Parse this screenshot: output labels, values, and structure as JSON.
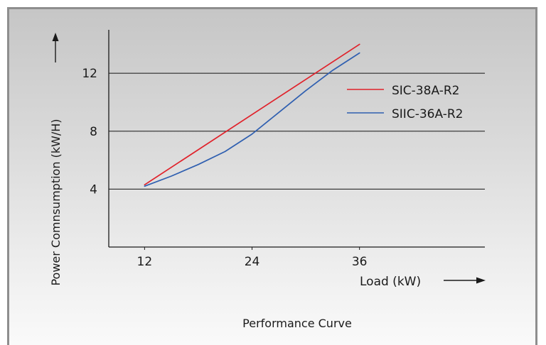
{
  "chart_data": {
    "type": "line",
    "title": "Performance Curve",
    "xlabel": "Load (kW)",
    "ylabel": "Power Comnsumption (kW/H)",
    "xlim": [
      8,
      50
    ],
    "ylim": [
      0,
      15
    ],
    "x_ticks": [
      12,
      24,
      36
    ],
    "y_ticks": [
      4,
      8,
      12
    ],
    "grid": "horizontal",
    "legend_position": "right",
    "series": [
      {
        "name": "SIC-38A-R2",
        "color": "#e0222b",
        "points": [
          [
            12,
            4.3
          ],
          [
            36,
            14.0
          ]
        ]
      },
      {
        "name": "SIIC-36A-R2",
        "color": "#2f5fb0",
        "points": [
          [
            12,
            4.2
          ],
          [
            15,
            4.9
          ],
          [
            18,
            5.7
          ],
          [
            21,
            6.6
          ],
          [
            24,
            7.8
          ],
          [
            27,
            9.3
          ],
          [
            30,
            10.8
          ],
          [
            33,
            12.2
          ],
          [
            36,
            13.4
          ]
        ]
      }
    ]
  }
}
